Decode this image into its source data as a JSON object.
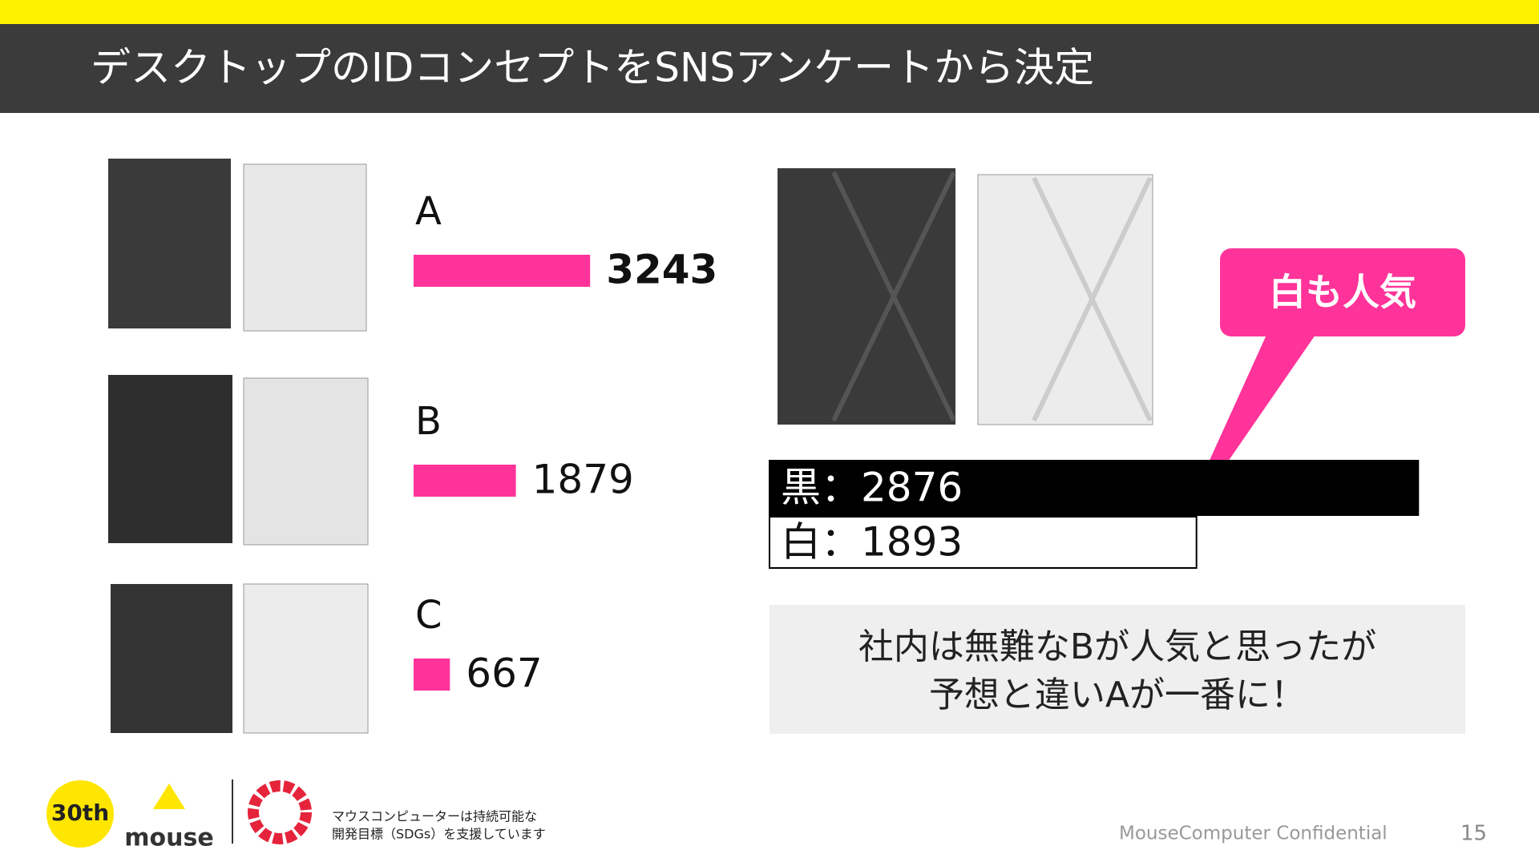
{
  "title": "デスクトップのIDコンセプトをSNSアンケートから決定",
  "chart_data": [
    {
      "type": "bar",
      "orientation": "horizontal",
      "categories": [
        "A",
        "B",
        "C"
      ],
      "values": [
        3243,
        1879,
        667
      ],
      "color": "#ff3399"
    },
    {
      "type": "bar",
      "orientation": "horizontal",
      "values": [
        2876,
        1893
      ],
      "value_labels": [
        "黒：2876",
        "白：1893"
      ],
      "colors": [
        "#000000",
        "#ffffff"
      ]
    }
  ],
  "callout": "白も人気",
  "comment": [
    "社内は無難なBが人気と思ったが",
    "予想と違いAが一番に！"
  ],
  "footer": {
    "anniversary": "30th",
    "brand": "mouse",
    "sdgs": [
      "マウスコンピューターは持続可能な",
      "開発目標（SDGs）を支援しています"
    ],
    "confidential": "MouseComputer Confidential",
    "page": "15"
  }
}
